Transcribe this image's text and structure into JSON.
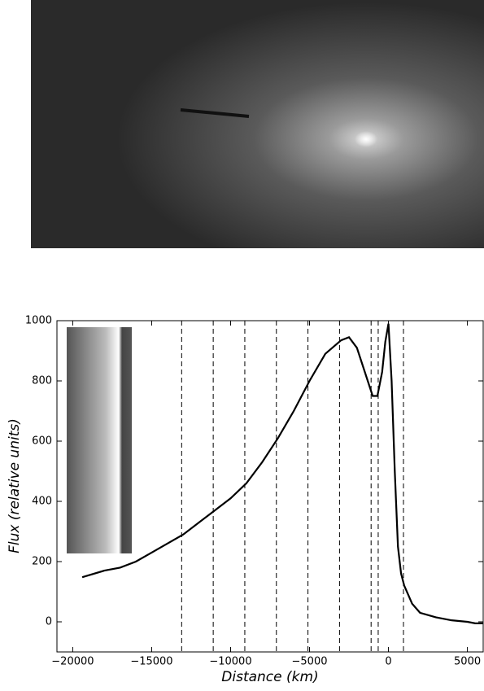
{
  "chart_data": {
    "type": "line",
    "xlabel": "Distance (km)",
    "ylabel": "Flux (relative units)",
    "xlim": [
      -21000,
      6000
    ],
    "ylim": [
      -100,
      1000
    ],
    "xticks": [
      {
        "value": -20000,
        "label": "−20000"
      },
      {
        "value": -15000,
        "label": "−15000"
      },
      {
        "value": -10000,
        "label": "−10000"
      },
      {
        "value": -5000,
        "label": "−5000"
      },
      0,
      5000
    ],
    "yticks": [
      0,
      200,
      400,
      600,
      800,
      1000
    ],
    "vlines": [
      -13100,
      -11100,
      -9100,
      -7100,
      -5100,
      -3100,
      -1100,
      -650,
      950
    ],
    "series": [
      {
        "color": "#000000",
        "x": [
          -19400,
          -18000,
          -17000,
          -16000,
          -15000,
          -14000,
          -13000,
          -12000,
          -11000,
          -10000,
          -9000,
          -8000,
          -7000,
          -6000,
          -5000,
          -4000,
          -3000,
          -2500,
          -2000,
          -1500,
          -1000,
          -700,
          -400,
          -200,
          0,
          200,
          400,
          600,
          800,
          1000,
          1500,
          2000,
          3000,
          4000,
          5000,
          5500,
          6000
        ],
        "values": [
          148,
          170,
          180,
          200,
          230,
          260,
          290,
          330,
          370,
          410,
          460,
          530,
          610,
          700,
          800,
          890,
          935,
          945,
          910,
          830,
          750,
          750,
          830,
          930,
          990,
          800,
          500,
          250,
          160,
          120,
          60,
          30,
          15,
          5,
          0,
          -5,
          -5
        ]
      }
    ]
  }
}
